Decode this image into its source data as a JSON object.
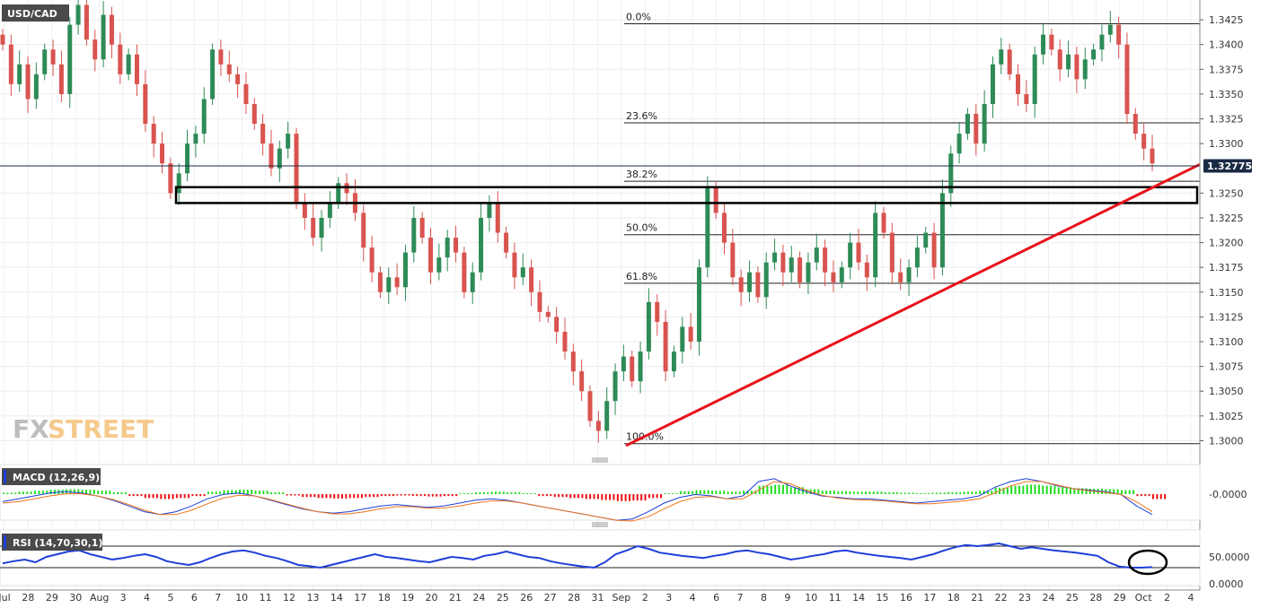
{
  "chart_data": [
    {
      "type": "candlestick",
      "symbol": "USD/CAD",
      "ylim": [
        1.2985,
        1.3445
      ],
      "y_ticks": [
        "1.3425",
        "1.3400",
        "1.3375",
        "1.3350",
        "1.3325",
        "1.3300",
        "1.3250",
        "1.3225",
        "1.3200",
        "1.3175",
        "1.3150",
        "1.3125",
        "1.3100",
        "1.3075",
        "1.3050",
        "1.3025",
        "1.3000"
      ],
      "x_labels": [
        "Jul",
        "28",
        "29",
        "30",
        "Aug",
        "3",
        "4",
        "5",
        "6",
        "7",
        "10",
        "11",
        "12",
        "13",
        "14",
        "17",
        "18",
        "19",
        "20",
        "21",
        "24",
        "25",
        "26",
        "27",
        "28",
        "31",
        "Sep",
        "2",
        "3",
        "4",
        "6",
        "7",
        "8",
        "9",
        "10",
        "11",
        "14",
        "15",
        "16",
        "17",
        "18",
        "21",
        "22",
        "23",
        "24",
        "25",
        "28",
        "29",
        "Oct",
        "2",
        "4"
      ],
      "current_price": "1.32775",
      "fibonacci_levels": [
        {
          "label": "0.0%",
          "value": 1.3421
        },
        {
          "label": "23.6%",
          "value": 1.3321
        },
        {
          "label": "38.2%",
          "value": 1.3262
        },
        {
          "label": "50.0%",
          "value": 1.3208
        },
        {
          "label": "61.8%",
          "value": 1.3159
        },
        {
          "label": "100.0%",
          "value": 1.2997
        }
      ],
      "support_zone": {
        "top": 1.3256,
        "bottom": 1.324
      },
      "trendline": {
        "from": {
          "date": "Sep 1",
          "value": 1.2995
        },
        "to": {
          "date": "Oct 2",
          "value": 1.3279
        }
      },
      "path_points": [
        1.34,
        1.336,
        1.338,
        1.3345,
        1.337,
        1.3395,
        1.338,
        1.335,
        1.342,
        1.344,
        1.3405,
        1.3385,
        1.343,
        1.34,
        1.337,
        1.339,
        1.336,
        1.332,
        1.33,
        1.328,
        1.325,
        1.327,
        1.33,
        1.331,
        1.3345,
        1.3395,
        1.338,
        1.337,
        1.336,
        1.334,
        1.332,
        1.33,
        1.3275,
        1.3295,
        1.331,
        1.324,
        1.3225,
        1.3205,
        1.3225,
        1.324,
        1.326,
        1.325,
        1.323,
        1.3195,
        1.317,
        1.315,
        1.3165,
        1.3155,
        1.319,
        1.3225,
        1.3205,
        1.317,
        1.3185,
        1.3205,
        1.319,
        1.315,
        1.317,
        1.3225,
        1.324,
        1.321,
        1.319,
        1.3165,
        1.3175,
        1.315,
        1.313,
        1.3125,
        1.311,
        1.309,
        1.307,
        1.305,
        1.302,
        1.301,
        1.304,
        1.307,
        1.3085,
        1.306,
        1.309,
        1.314,
        1.312,
        1.307,
        1.309,
        1.3115,
        1.31,
        1.3175,
        1.3255,
        1.323,
        1.32,
        1.3165,
        1.315,
        1.317,
        1.3145,
        1.318,
        1.319,
        1.317,
        1.3185,
        1.316,
        1.318,
        1.3195,
        1.317,
        1.316,
        1.3175,
        1.32,
        1.318,
        1.3165,
        1.323,
        1.321,
        1.317,
        1.316,
        1.3175,
        1.3195,
        1.321,
        1.3175,
        1.325,
        1.329,
        1.331,
        1.333,
        1.33,
        1.334,
        1.338,
        1.3395,
        1.337,
        1.335,
        1.334,
        1.339,
        1.341,
        1.3395,
        1.3375,
        1.339,
        1.3365,
        1.3385,
        1.3395,
        1.341,
        1.342,
        1.34,
        1.333,
        1.331,
        1.3295,
        1.328
      ]
    },
    {
      "type": "macd",
      "label": "MACD (12,26,9)",
      "y_tick": "-0.0000",
      "path_points": [
        0.0002,
        0.0006,
        0.001,
        0.0014,
        0.0016,
        0.0014,
        0.001,
        0.0004,
        -0.0004,
        -0.0012,
        -0.0016,
        -0.0012,
        -0.0004,
        0.0006,
        0.0012,
        0.0014,
        0.001,
        0.0004,
        -0.0002,
        -0.0008,
        -0.0012,
        -0.0014,
        -0.0012,
        -0.0008,
        -0.0004,
        -0.0002,
        -0.0004,
        -0.0006,
        -0.0004,
        0.0,
        0.0004,
        0.0006,
        0.0004,
        0.0,
        -0.0004,
        -0.0008,
        -0.0012,
        -0.0016,
        -0.002,
        -0.0024,
        -0.0022,
        -0.0012,
        0.0,
        0.0008,
        0.0012,
        0.001,
        0.0006,
        0.001,
        0.003,
        0.0034,
        0.0024,
        0.0016,
        0.001,
        0.0008,
        0.0006,
        0.0006,
        0.0004,
        0.0002,
        0.0,
        0.0002,
        0.0004,
        0.0006,
        0.001,
        0.0022,
        0.003,
        0.0034,
        0.003,
        0.0024,
        0.002,
        0.0018,
        0.0016,
        0.0012,
        -0.0004,
        -0.0016
      ]
    },
    {
      "type": "rsi",
      "label": "RSI (14,70,30,1)",
      "y_ticks": [
        "50.0000",
        "0.0000"
      ],
      "overbought": 70,
      "oversold": 30,
      "path_points": [
        38,
        42,
        45,
        40,
        50,
        55,
        60,
        62,
        55,
        50,
        45,
        48,
        52,
        55,
        50,
        42,
        38,
        35,
        40,
        48,
        55,
        60,
        62,
        58,
        52,
        48,
        42,
        35,
        33,
        30,
        35,
        40,
        45,
        50,
        55,
        50,
        48,
        45,
        42,
        40,
        45,
        50,
        48,
        45,
        52,
        55,
        60,
        55,
        50,
        48,
        42,
        38,
        35,
        32,
        30,
        40,
        55,
        62,
        70,
        65,
        58,
        55,
        52,
        50,
        48,
        52,
        55,
        60,
        62,
        58,
        55,
        50,
        45,
        48,
        52,
        55,
        60,
        62,
        58,
        55,
        52,
        50,
        48,
        45,
        50,
        55,
        62,
        68,
        72,
        70,
        72,
        75,
        70,
        65,
        68,
        65,
        62,
        60,
        58,
        55,
        52,
        40,
        32,
        30,
        30,
        31
      ]
    }
  ],
  "ui": {
    "logo_fx": "FX",
    "logo_street": "STREET"
  }
}
